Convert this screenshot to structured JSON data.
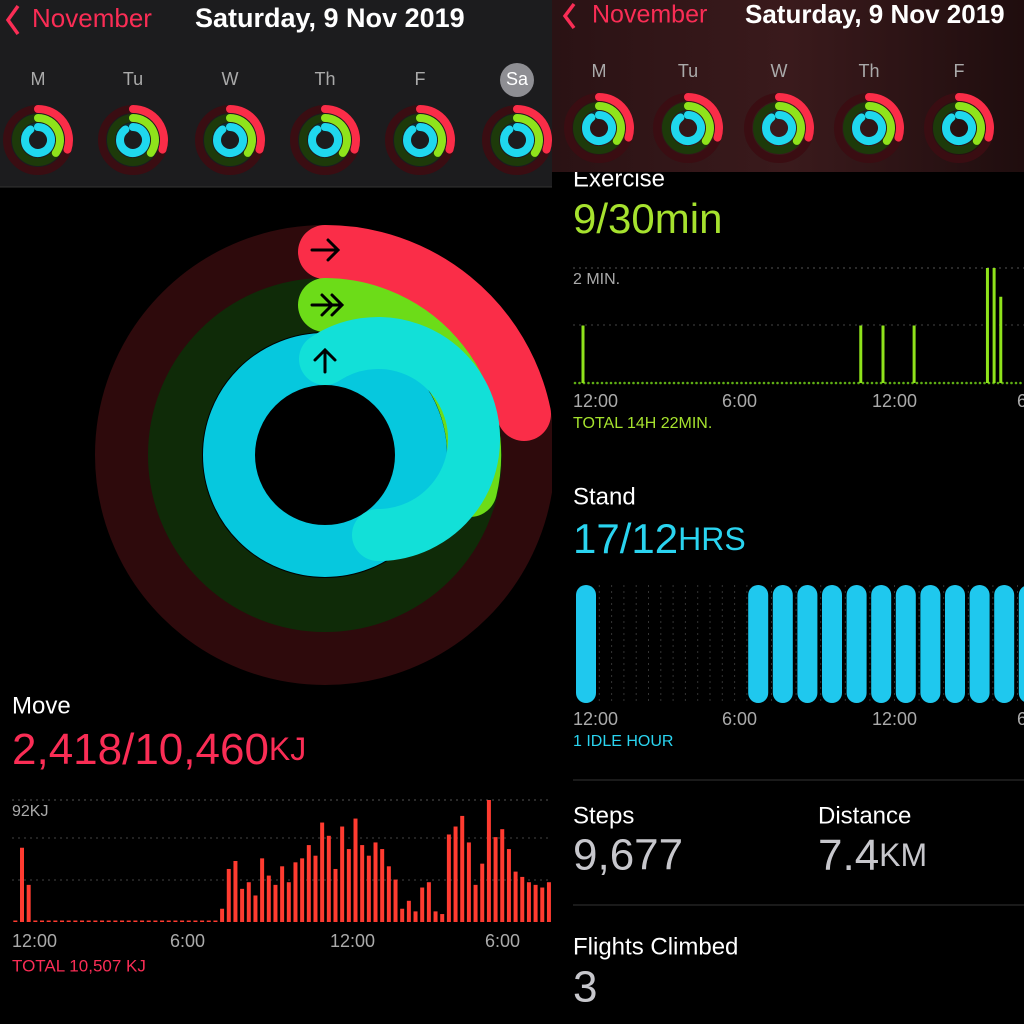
{
  "left": {
    "header": {
      "back": "November",
      "date": "Saturday, 9 Nov 2019"
    },
    "weekdays": [
      "M",
      "Tu",
      "W",
      "Th",
      "F",
      "Sa"
    ],
    "move": {
      "label": "Move",
      "value": "2,418/10,460",
      "unit": "KJ",
      "chart": {
        "ylim": [
          0,
          92
        ],
        "yticks": [
          {
            "value": 92,
            "label": "92KJ"
          }
        ],
        "values": [
          0,
          56,
          28,
          1,
          1,
          1,
          1,
          1,
          1,
          1,
          1,
          1,
          1,
          1,
          1,
          1,
          1,
          1,
          1,
          1,
          1,
          1,
          1,
          1,
          1,
          1,
          1,
          1,
          1,
          1,
          1,
          10,
          40,
          46,
          25,
          30,
          20,
          48,
          35,
          28,
          42,
          30,
          45,
          48,
          58,
          50,
          75,
          65,
          40,
          72,
          55,
          78,
          58,
          50,
          60,
          55,
          42,
          32,
          10,
          16,
          8,
          26,
          30,
          8,
          6,
          66,
          72,
          80,
          60,
          28,
          44,
          92,
          64,
          70,
          55,
          38,
          34,
          30,
          28,
          26,
          30
        ],
        "xlabels": [
          "12:00",
          "6:00",
          "12:00",
          "6:00"
        ],
        "total": "TOTAL 10,507 KJ"
      }
    }
  },
  "right": {
    "header": {
      "back": "November",
      "date": "Saturday, 9 Nov 2019"
    },
    "weekdays": [
      "M",
      "Tu",
      "W",
      "Th",
      "F"
    ],
    "exercise": {
      "label": "Exercise",
      "value": "9/30",
      "unit": "min",
      "chart": {
        "ylim": [
          0,
          2
        ],
        "yticks": [
          {
            "value": 2,
            "label": "2 MIN."
          }
        ],
        "x": [
          0,
          625,
          675,
          745,
          910,
          925,
          940
        ],
        "values": [
          1,
          1,
          1,
          1,
          2,
          2,
          1.5
        ],
        "xlabels": [
          "12:00",
          "6:00",
          "12:00",
          "6"
        ],
        "total": "TOTAL 14H 22MIN."
      }
    },
    "stand": {
      "label": "Stand",
      "value": "17/12",
      "unit": "HRS",
      "chart": {
        "values": [
          1,
          0,
          0,
          0,
          0,
          0,
          0,
          1,
          1,
          1,
          1,
          1,
          1,
          1,
          1,
          1,
          1,
          1,
          1
        ],
        "xlabels": [
          "12:00",
          "6:00",
          "12:00",
          "6"
        ],
        "total": "1 IDLE HOUR"
      }
    },
    "steps": {
      "label": "Steps",
      "value": "9,677"
    },
    "distance": {
      "label": "Distance",
      "value": "7.4",
      "unit": "KM"
    },
    "flights": {
      "label": "Flights Climbed",
      "value": "3"
    }
  }
}
